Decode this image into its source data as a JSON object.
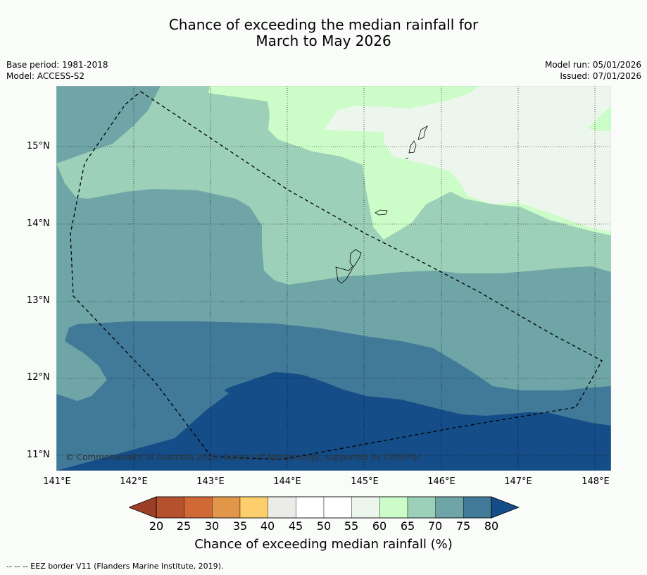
{
  "title_line1": "Chance of exceeding the median rainfall for",
  "title_line2": "March to May 2026",
  "base_period": "Base period: 1981-2018",
  "model": "Model: ACCESS-S2",
  "model_run": "Model run: 05/01/2026",
  "issued": "Issued: 07/01/2026",
  "copyright": "© Commonwealth of Australia 2026, Bureau of Meteorology, supported by COSPPac",
  "footnote": "--  --  -- EEZ border V11 (Flanders Marine Institute, 2019).",
  "lat_labels": [
    "15°N",
    "14°N",
    "13°N",
    "12°N",
    "11°N"
  ],
  "lon_labels": [
    "141°E",
    "142°E",
    "143°E",
    "144°E",
    "145°E",
    "146°E",
    "147°E",
    "148°E"
  ],
  "colorbar": {
    "title": "Chance of exceeding median rainfall (%)",
    "labels": [
      "20",
      "25",
      "30",
      "35",
      "40",
      "45",
      "50",
      "55",
      "60",
      "65",
      "70",
      "75",
      "80"
    ],
    "colors": [
      "#b5512c",
      "#d16937",
      "#e2964a",
      "#fccf6c",
      "#ebebe7",
      "#ffffff",
      "#ffffff",
      "#edf6ec",
      "#ccfdc8",
      "#9dd0b9",
      "#6fa5a6",
      "#417a98"
    ],
    "under_color": "#9c3f26",
    "over_color": "#144d87"
  },
  "map_colors": {
    "c55": "#edf6ec",
    "c60": "#ccfdc8",
    "c65": "#9dd0b9",
    "c70": "#6fa5a6",
    "c75": "#417a98",
    "c80": "#144d87"
  }
}
